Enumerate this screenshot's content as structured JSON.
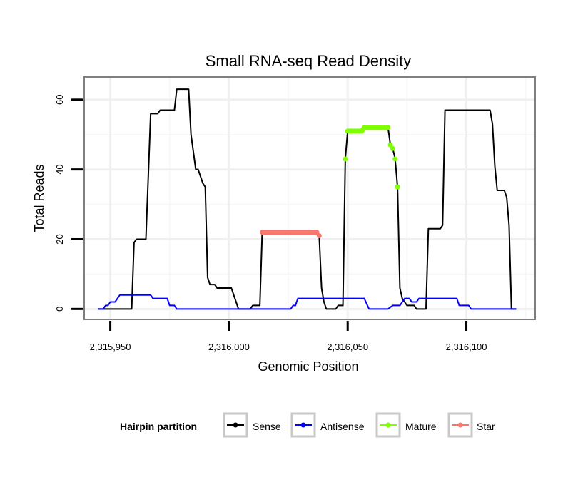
{
  "chart_data": {
    "type": "line",
    "title": "Small RNA-seq Read Density",
    "xlabel": "Genomic Position",
    "ylabel": "Total Reads",
    "xlim": [
      2315939,
      2316129
    ],
    "ylim": [
      -3,
      66.5
    ],
    "xticks": [
      {
        "value": 2315950,
        "label": "2,315,950"
      },
      {
        "value": 2316000,
        "label": "2,316,000"
      },
      {
        "value": 2316050,
        "label": "2,316,050"
      },
      {
        "value": 2316100,
        "label": "2,316,100"
      }
    ],
    "yticks": [
      {
        "value": 0,
        "label": "0"
      },
      {
        "value": 20,
        "label": "20"
      },
      {
        "value": 40,
        "label": "40"
      },
      {
        "value": 60,
        "label": "60"
      }
    ],
    "grid": true,
    "legend": {
      "title": "Hairpin partition",
      "position": "bottom",
      "entries": [
        {
          "label": "Sense",
          "color": "#000000"
        },
        {
          "label": "Antisense",
          "color": "#0000ff"
        },
        {
          "label": "Mature",
          "color": "#7fff00"
        },
        {
          "label": "Star",
          "color": "#f8766d"
        }
      ]
    },
    "series": [
      {
        "name": "Sense",
        "color": "#000000",
        "style": "line",
        "points": [
          [
            2315945,
            0
          ],
          [
            2315952,
            0
          ],
          [
            2315953,
            0
          ],
          [
            2315954,
            0
          ],
          [
            2315959,
            0
          ],
          [
            2315960,
            19
          ],
          [
            2315961,
            20
          ],
          [
            2315965,
            20
          ],
          [
            2315967,
            56
          ],
          [
            2315970,
            56
          ],
          [
            2315971,
            57
          ],
          [
            2315977,
            57
          ],
          [
            2315978,
            63
          ],
          [
            2315983,
            63
          ],
          [
            2315984,
            50
          ],
          [
            2315985,
            45
          ],
          [
            2315986,
            40
          ],
          [
            2315987,
            40
          ],
          [
            2315988,
            38
          ],
          [
            2315989,
            36
          ],
          [
            2315990,
            35
          ],
          [
            2315991,
            9
          ],
          [
            2315992,
            7
          ],
          [
            2315993,
            7
          ],
          [
            2315994,
            7
          ],
          [
            2315995,
            6
          ],
          [
            2316001,
            6
          ],
          [
            2316004,
            0
          ],
          [
            2316009,
            0
          ],
          [
            2316010,
            1
          ],
          [
            2316013,
            1
          ],
          [
            2316014,
            22
          ],
          [
            2316015,
            22
          ],
          [
            2316037,
            22
          ],
          [
            2316038,
            21
          ],
          [
            2316039,
            6
          ],
          [
            2316040,
            2
          ],
          [
            2316041,
            0
          ],
          [
            2316045,
            0
          ],
          [
            2316046,
            1
          ],
          [
            2316048,
            1
          ],
          [
            2316049,
            43
          ],
          [
            2316050,
            51
          ],
          [
            2316056,
            51
          ],
          [
            2316057,
            52
          ],
          [
            2316067,
            52
          ],
          [
            2316068,
            47
          ],
          [
            2316069,
            46
          ],
          [
            2316070,
            43
          ],
          [
            2316071,
            35
          ],
          [
            2316072,
            6
          ],
          [
            2316073,
            3
          ],
          [
            2316074,
            2
          ],
          [
            2316075,
            1
          ],
          [
            2316078,
            1
          ],
          [
            2316079,
            0
          ],
          [
            2316083,
            0
          ],
          [
            2316084,
            23
          ],
          [
            2316089,
            23
          ],
          [
            2316090,
            24
          ],
          [
            2316091,
            57
          ],
          [
            2316098,
            57
          ],
          [
            2316110,
            57
          ],
          [
            2316111,
            53
          ],
          [
            2316112,
            41
          ],
          [
            2316113,
            34
          ],
          [
            2316116,
            34
          ],
          [
            2316117,
            32
          ],
          [
            2316118,
            24
          ],
          [
            2316119,
            0
          ],
          [
            2316121,
            0
          ]
        ]
      },
      {
        "name": "Antisense",
        "color": "#0000ff",
        "style": "line",
        "points": [
          [
            2315945,
            0
          ],
          [
            2315947,
            0
          ],
          [
            2315948,
            1
          ],
          [
            2315949,
            1
          ],
          [
            2315950,
            2
          ],
          [
            2315952,
            2
          ],
          [
            2315953,
            3
          ],
          [
            2315954,
            4
          ],
          [
            2315967,
            4
          ],
          [
            2315968,
            3
          ],
          [
            2315974,
            3
          ],
          [
            2315975,
            1
          ],
          [
            2315977,
            1
          ],
          [
            2315978,
            0
          ],
          [
            2316026,
            0
          ],
          [
            2316027,
            1
          ],
          [
            2316028,
            1
          ],
          [
            2316029,
            3
          ],
          [
            2316041,
            3
          ],
          [
            2316057,
            3
          ],
          [
            2316059,
            0
          ],
          [
            2316067,
            0
          ],
          [
            2316069,
            1
          ],
          [
            2316072,
            1
          ],
          [
            2316073,
            2
          ],
          [
            2316074,
            3
          ],
          [
            2316076,
            3
          ],
          [
            2316077,
            2
          ],
          [
            2316079,
            2
          ],
          [
            2316080,
            3
          ],
          [
            2316096,
            3
          ],
          [
            2316097,
            1
          ],
          [
            2316101,
            1
          ],
          [
            2316102,
            0
          ],
          [
            2316121,
            0
          ]
        ]
      },
      {
        "name": "Mature",
        "color": "#7fff00",
        "style": "points",
        "points": [
          [
            2316049,
            43
          ],
          [
            2316050,
            51
          ],
          [
            2316050.5,
            51
          ],
          [
            2316051,
            51
          ],
          [
            2316051.5,
            51
          ],
          [
            2316052,
            51
          ],
          [
            2316052.5,
            51
          ],
          [
            2316053,
            51
          ],
          [
            2316053.5,
            51
          ],
          [
            2316054,
            51
          ],
          [
            2316054.5,
            51
          ],
          [
            2316055,
            51
          ],
          [
            2316055.5,
            51
          ],
          [
            2316056,
            51
          ],
          [
            2316056.5,
            51.5
          ],
          [
            2316057,
            52
          ],
          [
            2316057.5,
            52
          ],
          [
            2316058,
            52
          ],
          [
            2316058.5,
            52
          ],
          [
            2316059,
            52
          ],
          [
            2316059.5,
            52
          ],
          [
            2316060,
            52
          ],
          [
            2316060.5,
            52
          ],
          [
            2316061,
            52
          ],
          [
            2316061.5,
            52
          ],
          [
            2316062,
            52
          ],
          [
            2316062.5,
            52
          ],
          [
            2316063,
            52
          ],
          [
            2316063.5,
            52
          ],
          [
            2316064,
            52
          ],
          [
            2316064.5,
            52
          ],
          [
            2316065,
            52
          ],
          [
            2316065.5,
            52
          ],
          [
            2316066,
            52
          ],
          [
            2316066.5,
            52
          ],
          [
            2316067,
            52
          ],
          [
            2316068,
            47
          ],
          [
            2316069,
            46
          ],
          [
            2316070,
            43
          ],
          [
            2316071,
            35
          ]
        ]
      },
      {
        "name": "Star",
        "color": "#f8766d",
        "style": "points",
        "points": [
          [
            2316014,
            22
          ],
          [
            2316014.5,
            22
          ],
          [
            2316015,
            22
          ],
          [
            2316015.5,
            22
          ],
          [
            2316016,
            22
          ],
          [
            2316016.5,
            22
          ],
          [
            2316017,
            22
          ],
          [
            2316017.5,
            22
          ],
          [
            2316018,
            22
          ],
          [
            2316018.5,
            22
          ],
          [
            2316019,
            22
          ],
          [
            2316019.5,
            22
          ],
          [
            2316020,
            22
          ],
          [
            2316020.5,
            22
          ],
          [
            2316021,
            22
          ],
          [
            2316021.5,
            22
          ],
          [
            2316022,
            22
          ],
          [
            2316022.5,
            22
          ],
          [
            2316023,
            22
          ],
          [
            2316023.5,
            22
          ],
          [
            2316024,
            22
          ],
          [
            2316024.5,
            22
          ],
          [
            2316025,
            22
          ],
          [
            2316025.5,
            22
          ],
          [
            2316026,
            22
          ],
          [
            2316026.5,
            22
          ],
          [
            2316027,
            22
          ],
          [
            2316027.5,
            22
          ],
          [
            2316028,
            22
          ],
          [
            2316028.5,
            22
          ],
          [
            2316029,
            22
          ],
          [
            2316029.5,
            22
          ],
          [
            2316030,
            22
          ],
          [
            2316030.5,
            22
          ],
          [
            2316031,
            22
          ],
          [
            2316031.5,
            22
          ],
          [
            2316032,
            22
          ],
          [
            2316032.5,
            22
          ],
          [
            2316033,
            22
          ],
          [
            2316033.5,
            22
          ],
          [
            2316034,
            22
          ],
          [
            2316034.5,
            22
          ],
          [
            2316035,
            22
          ],
          [
            2316035.5,
            22
          ],
          [
            2316036,
            22
          ],
          [
            2316036.5,
            22
          ],
          [
            2316037,
            22
          ],
          [
            2316038,
            21
          ]
        ]
      }
    ]
  }
}
